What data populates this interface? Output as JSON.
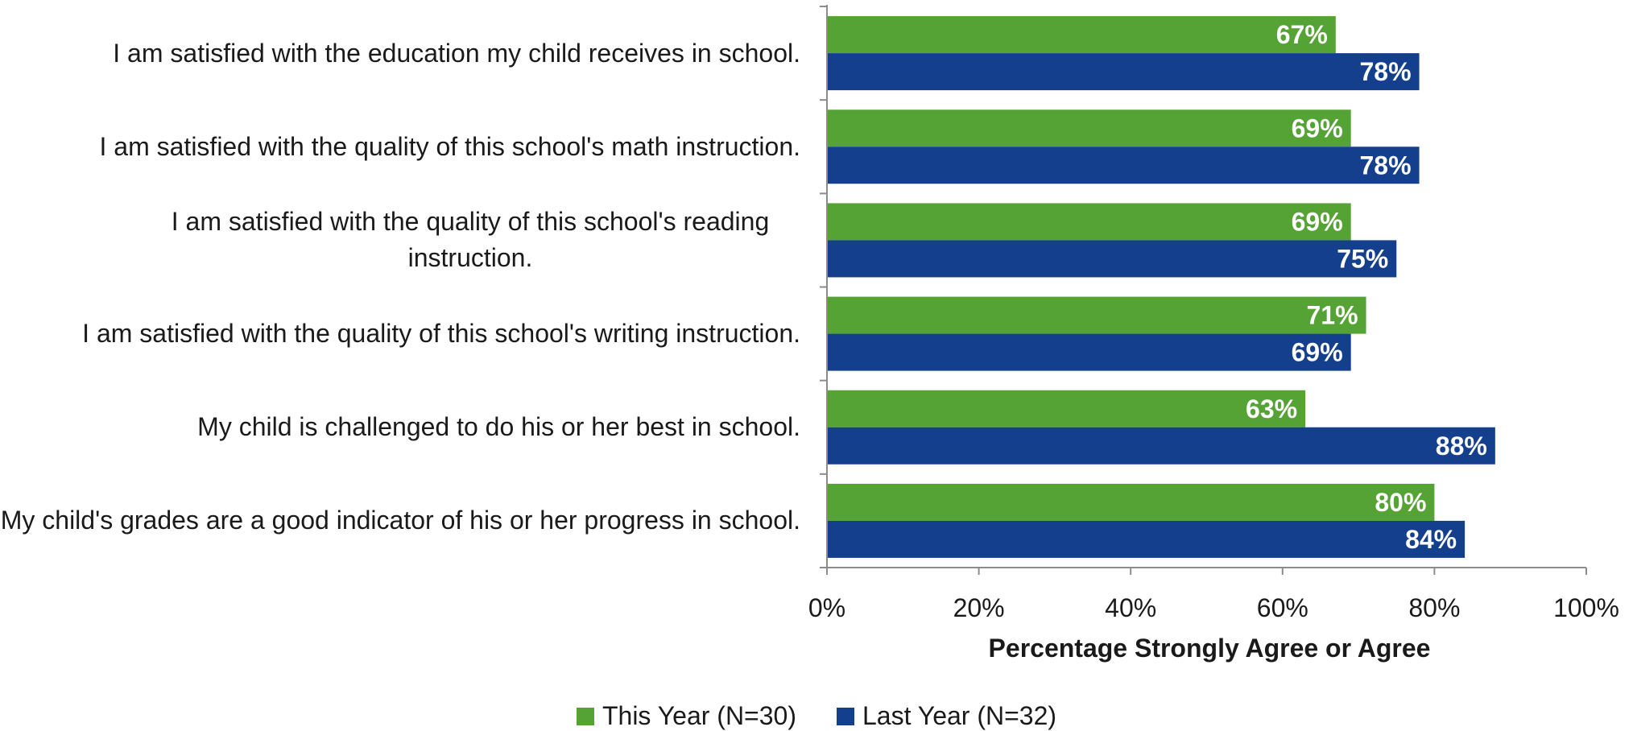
{
  "chart_data": {
    "type": "bar",
    "orientation": "horizontal",
    "categories": [
      "I am satisfied with the education my child receives in school.",
      "I am satisfied with the quality of this school's math instruction.",
      "I am satisfied with the quality of this school's reading instruction.",
      "I am satisfied with the quality of this school's writing instruction.",
      "My child is challenged to do his or her best in school.",
      "My child's grades are a good indicator of his or her progress in school."
    ],
    "series": [
      {
        "name": "This Year (N=30)",
        "color": "#55a235",
        "values": [
          67,
          69,
          69,
          71,
          63,
          80
        ],
        "labels": [
          "67%",
          "69%",
          "69%",
          "71%",
          "63%",
          "80%"
        ]
      },
      {
        "name": "Last Year (N=32)",
        "color": "#133f8c",
        "values": [
          78,
          78,
          75,
          69,
          88,
          84
        ],
        "labels": [
          "78%",
          "78%",
          "75%",
          "69%",
          "88%",
          "84%"
        ]
      }
    ],
    "xlabel": "Percentage Strongly Agree or Agree",
    "xlim": [
      0,
      100
    ],
    "xticks": [
      "0%",
      "20%",
      "40%",
      "60%",
      "80%",
      "100%"
    ],
    "grid": false,
    "legend_position": "bottom"
  }
}
